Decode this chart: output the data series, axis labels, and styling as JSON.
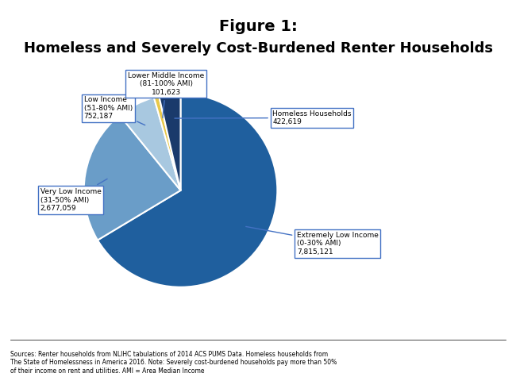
{
  "title_line1": "Figure 1:",
  "title_line2": "Homeless and Severely Cost-Burdened Renter Households",
  "slices": [
    {
      "label": "Extremely Low Income\n(0-30% AMI)",
      "value": 7815121,
      "formatted": "7,815,121",
      "color": "#1F5F9E"
    },
    {
      "label": "Very Low Income\n(31-50% AMI)",
      "value": 2677059,
      "formatted": "2,677,059",
      "color": "#6A9DC8"
    },
    {
      "label": "Low Income\n(51-80% AMI)",
      "value": 752187,
      "formatted": "752,187",
      "color": "#A8C8E0"
    },
    {
      "label": "Lower Middle Income\n(81-100% AMI)",
      "value": 101623,
      "formatted": "101,623",
      "color": "#E8C84A"
    },
    {
      "label": "Homeless Households",
      "value": 422619,
      "formatted": "422,619",
      "color": "#1A3A6B"
    }
  ],
  "footnote_line1": "Sources: Renter households from NLIHC tabulations of 2014 ACS PUMS Data. Homeless households from",
  "footnote_line2": "The State of Homelessness in America 2016. Note: Severely cost-burdened households pay more than 50%",
  "footnote_line3": "of their income on rent and utilities. AMI = Area Median Income",
  "background_color": "#FFFFFF"
}
